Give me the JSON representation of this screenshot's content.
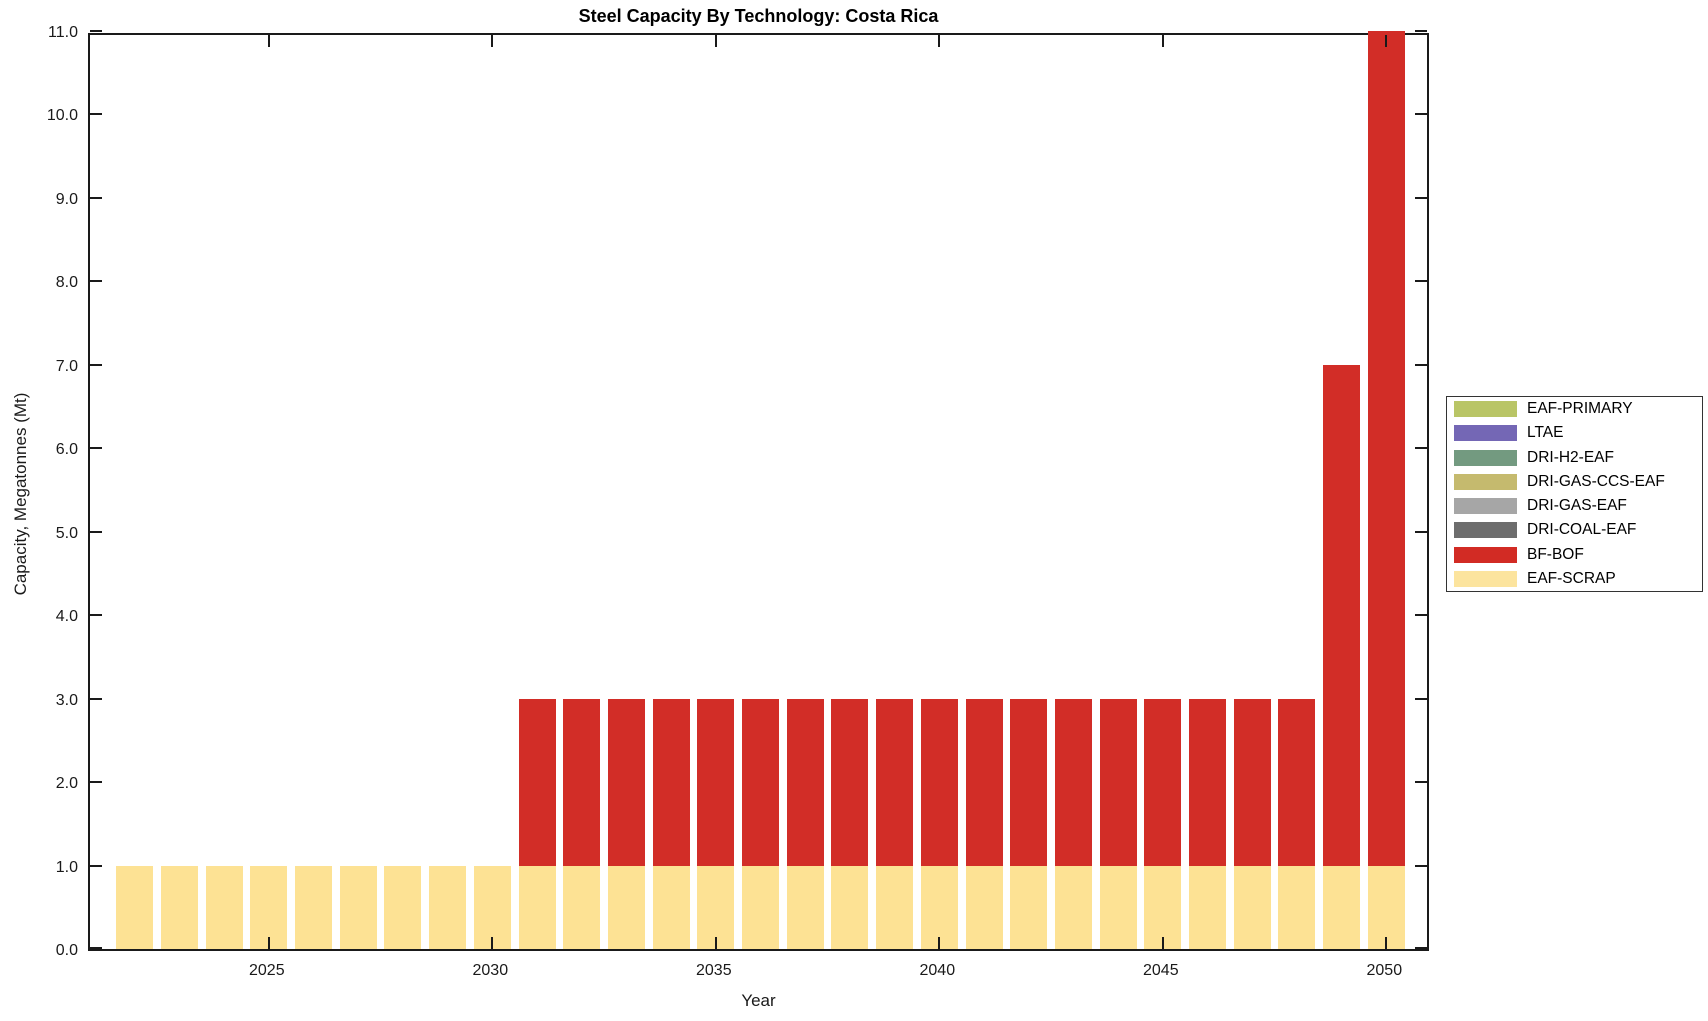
{
  "title": "Steel Capacity By Technology: Costa Rica",
  "chart_data": {
    "type": "bar",
    "stacked": true,
    "grid": false,
    "title": "Steel Capacity By Technology: Costa Rica",
    "xlabel": "Year",
    "ylabel": "Capacity, Megatonnes (Mt)",
    "ylim": [
      0.0,
      11.0
    ],
    "ytick_labels": [
      "0.0",
      "1.0",
      "2.0",
      "3.0",
      "4.0",
      "5.0",
      "6.0",
      "7.0",
      "8.0",
      "9.0",
      "10.0",
      "11.0"
    ],
    "xtick_years": [
      2025,
      2030,
      2035,
      2040,
      2045,
      2050
    ],
    "x_range": [
      2021,
      2051
    ],
    "years": [
      2022,
      2023,
      2024,
      2025,
      2026,
      2027,
      2028,
      2029,
      2030,
      2031,
      2032,
      2033,
      2034,
      2035,
      2036,
      2037,
      2038,
      2039,
      2040,
      2041,
      2042,
      2043,
      2044,
      2045,
      2046,
      2047,
      2048,
      2049,
      2050
    ],
    "series": [
      {
        "name": "EAF-SCRAP",
        "color": "#fde294",
        "values": [
          1,
          1,
          1,
          1,
          1,
          1,
          1,
          1,
          1,
          1,
          1,
          1,
          1,
          1,
          1,
          1,
          1,
          1,
          1,
          1,
          1,
          1,
          1,
          1,
          1,
          1,
          1,
          1,
          1
        ]
      },
      {
        "name": "BF-BOF",
        "color": "#d22d27",
        "values": [
          0,
          0,
          0,
          0,
          0,
          0,
          0,
          0,
          0,
          2,
          2,
          2,
          2,
          2,
          2,
          2,
          2,
          2,
          2,
          2,
          2,
          2,
          2,
          2,
          2,
          2,
          2,
          6,
          10
        ]
      }
    ],
    "legend": {
      "position": "right-outside",
      "entries": [
        {
          "label": "EAF-PRIMARY",
          "color": "#b9c566"
        },
        {
          "label": "LTAE",
          "color": "#7467b5"
        },
        {
          "label": "DRI-H2-EAF",
          "color": "#739a80"
        },
        {
          "label": "DRI-GAS-CCS-EAF",
          "color": "#c5ba6e"
        },
        {
          "label": "DRI-GAS-EAF",
          "color": "#a6a6a6"
        },
        {
          "label": "DRI-COAL-EAF",
          "color": "#6d6d6d"
        },
        {
          "label": "BF-BOF",
          "color": "#d22b24"
        },
        {
          "label": "EAF-SCRAP",
          "color": "#fce49e"
        }
      ]
    }
  }
}
